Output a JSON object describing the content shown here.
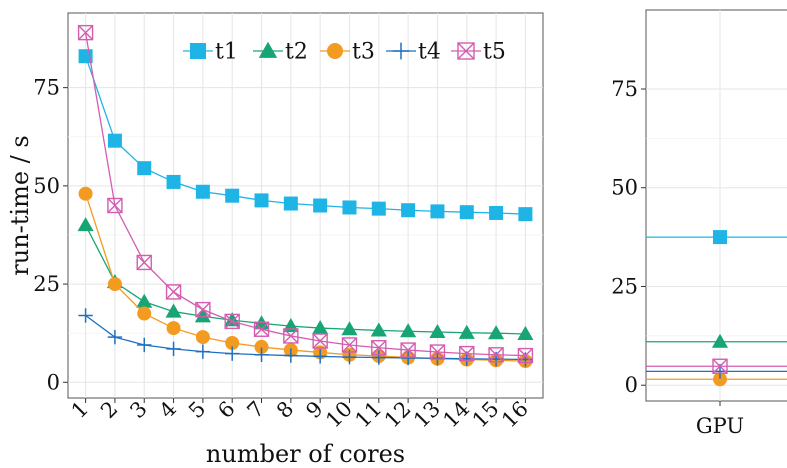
{
  "chart_data": [
    {
      "type": "line",
      "xlabel": "number of cores",
      "ylabel": "run-time / s",
      "ylim": [
        -4,
        94
      ],
      "y_ticks": [
        0,
        25,
        50,
        75
      ],
      "x": [
        1,
        2,
        3,
        4,
        5,
        6,
        7,
        8,
        9,
        10,
        11,
        12,
        13,
        14,
        15,
        16
      ],
      "x_tick_labels": [
        "1",
        "2",
        "3",
        "4",
        "5",
        "6",
        "7",
        "8",
        "9",
        "10",
        "11",
        "12",
        "13",
        "14",
        "15",
        "16"
      ],
      "grid": true,
      "legend_position": "top-right",
      "series": [
        {
          "name": "t1",
          "color": "#1EB4E6",
          "marker": "square",
          "values": [
            83,
            61.5,
            54.5,
            51,
            48.5,
            47.5,
            46.3,
            45.5,
            45,
            44.5,
            44.2,
            43.8,
            43.5,
            43.3,
            43.1,
            42.8
          ]
        },
        {
          "name": "t2",
          "color": "#17A673",
          "marker": "triangle",
          "values": [
            40,
            25.5,
            20.5,
            18,
            16.8,
            15.8,
            15,
            14.3,
            13.8,
            13.5,
            13.2,
            13,
            12.8,
            12.6,
            12.5,
            12.3
          ]
        },
        {
          "name": "t3",
          "color": "#F39A20",
          "marker": "circle",
          "values": [
            48,
            25,
            17.5,
            13.8,
            11.5,
            10,
            9,
            8.2,
            7.6,
            7,
            6.7,
            6.3,
            6,
            5.8,
            5.6,
            5.4
          ]
        },
        {
          "name": "t4",
          "color": "#1F6FC0",
          "marker": "plus",
          "values": [
            17,
            11.5,
            9.5,
            8.5,
            7.8,
            7.3,
            7,
            6.8,
            6.6,
            6.4,
            6.3,
            6.2,
            6.1,
            6,
            5.9,
            5.8
          ]
        },
        {
          "name": "t5",
          "color": "#D45DB0",
          "marker": "boxcross",
          "values": [
            89,
            45,
            30.5,
            23,
            18.5,
            15.5,
            13.5,
            11.8,
            10.5,
            9.5,
            8.8,
            8.2,
            7.7,
            7.3,
            7,
            6.8
          ]
        }
      ]
    },
    {
      "type": "scatter",
      "categories": [
        "GPU"
      ],
      "ylim": [
        -4,
        95
      ],
      "y_ticks": [
        0,
        25,
        50,
        75
      ],
      "grid": true,
      "series": [
        {
          "name": "t1",
          "color": "#1EB4E6",
          "marker": "square",
          "values": [
            37.5
          ]
        },
        {
          "name": "t2",
          "color": "#17A673",
          "marker": "triangle",
          "values": [
            11
          ]
        },
        {
          "name": "t3",
          "color": "#F39A20",
          "marker": "circle",
          "values": [
            1.5
          ]
        },
        {
          "name": "t4",
          "color": "#1F6FC0",
          "marker": "plus",
          "values": [
            3.5
          ]
        },
        {
          "name": "t5",
          "color": "#D45DB0",
          "marker": "boxcross",
          "values": [
            4.8
          ]
        }
      ]
    }
  ]
}
